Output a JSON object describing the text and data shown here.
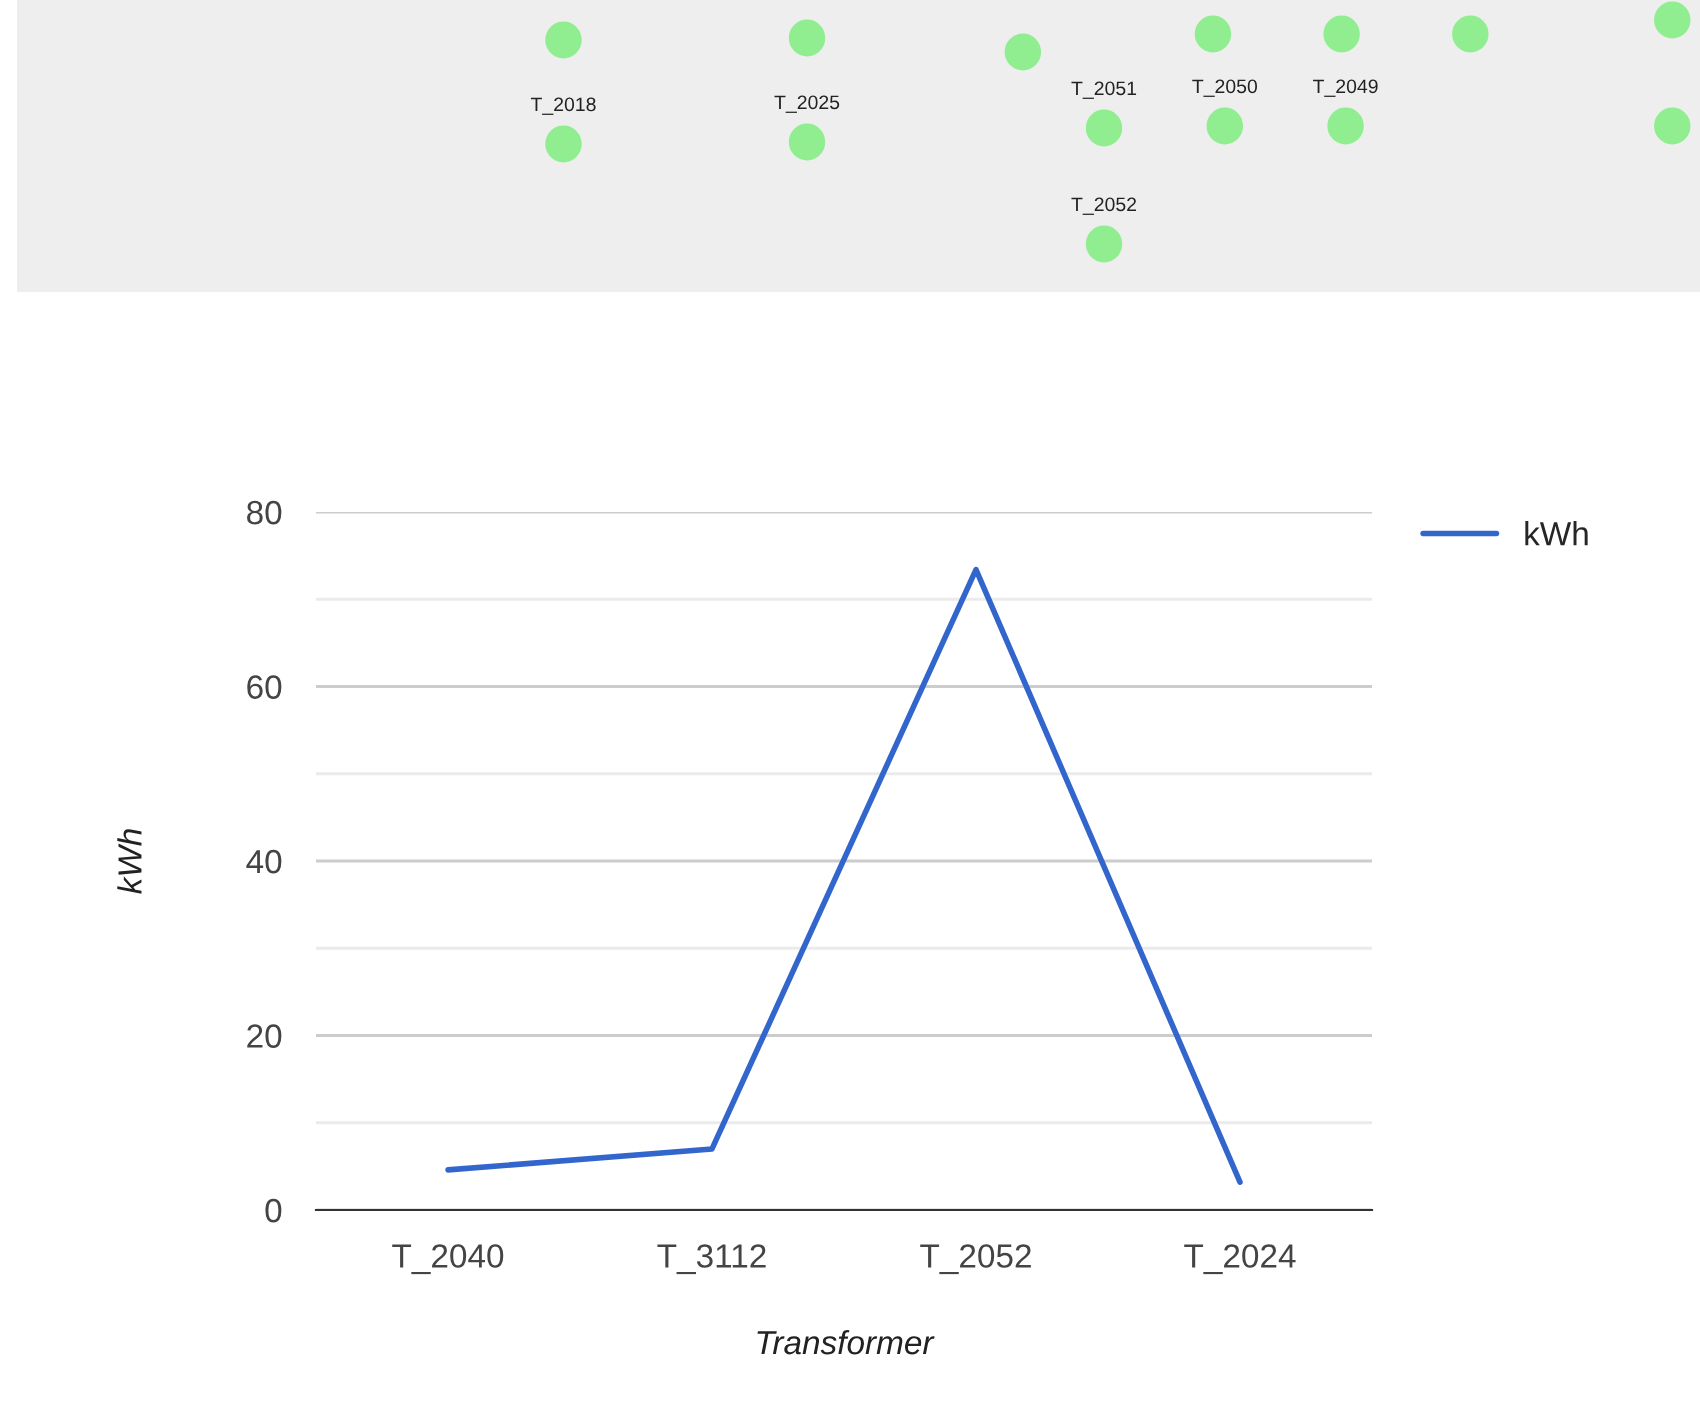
{
  "chart_data": [
    {
      "type": "other",
      "annotations": [
        "T_2018",
        "T_2025",
        "T_2051",
        "T_2050",
        "T_2049",
        "T_2052"
      ]
    },
    {
      "type": "line",
      "xlabel": "Transformer",
      "ylabel": "kWh",
      "categories": [
        "T_2040",
        "T_3112",
        "T_2052",
        "T_2024"
      ],
      "series": [
        {
          "name": "kWh",
          "color": "#3366cc",
          "values": [
            4.6,
            7.0,
            73.4,
            3.2
          ]
        }
      ],
      "ylim": [
        0,
        80
      ],
      "yticks": [
        0,
        20,
        40,
        60,
        80
      ],
      "grid": "y",
      "legend": "top right",
      "marker": "none",
      "line_style": "solid"
    }
  ]
}
